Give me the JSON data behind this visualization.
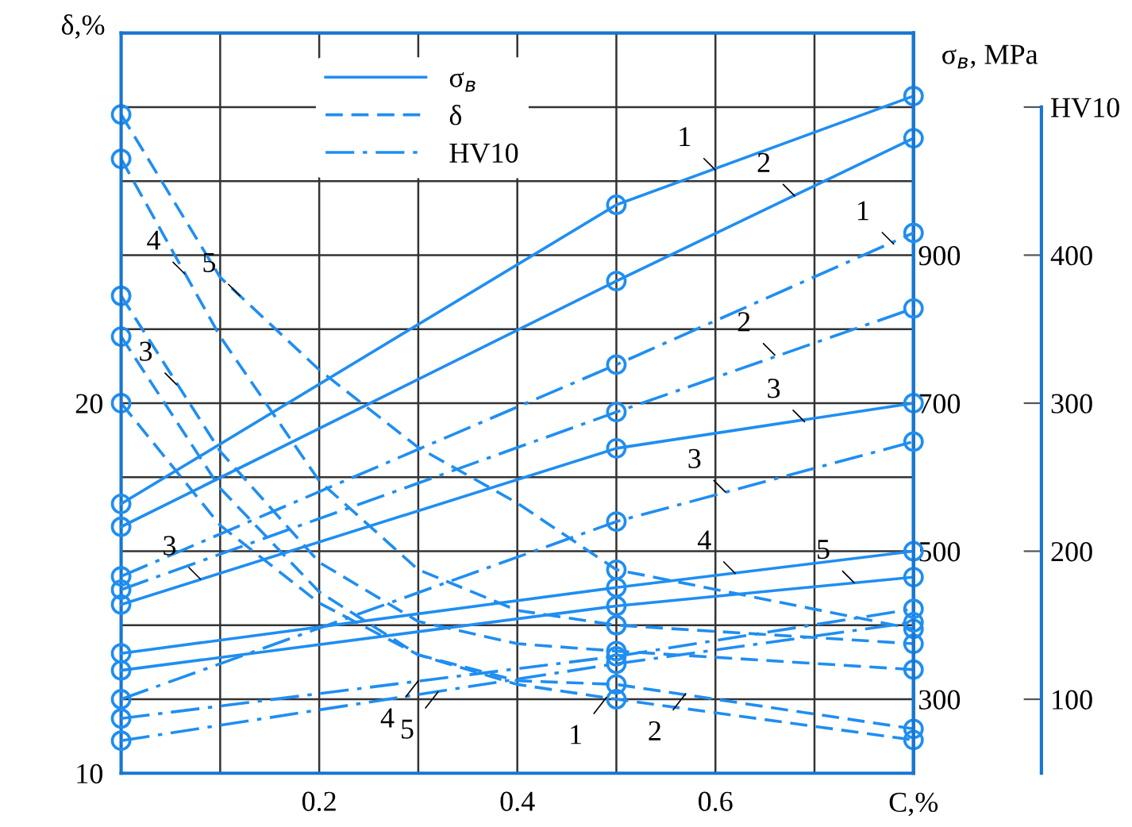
{
  "chart_data": {
    "type": "line",
    "xlabel": "C,%",
    "ylabel": "δ,%",
    "y2label": "σ$_{в}$, MPa",
    "xlim": [
      0,
      0.8
    ],
    "ylim": [
      10,
      30
    ],
    "y2lim": [
      200,
      1200
    ],
    "y3lim": [
      50,
      550
    ],
    "xticks": [
      {
        "value": 0.1,
        "label": null
      },
      0.2,
      {
        "value": 0.3,
        "label": null
      },
      0.4,
      {
        "value": 0.5,
        "label": null
      },
      0.6,
      {
        "value": 0.7,
        "label": null
      }
    ],
    "yticks": [
      10,
      {
        "value": 12,
        "label": null
      },
      {
        "value": 14,
        "label": null
      },
      {
        "value": 16,
        "label": null
      },
      {
        "value": 18,
        "label": null
      },
      20,
      {
        "value": 22,
        "label": null
      },
      {
        "value": 24,
        "label": null
      },
      {
        "value": 26,
        "label": null
      },
      {
        "value": 28,
        "label": null
      },
      {
        "value": 30,
        "label": null
      }
    ],
    "y2ticks": [
      300,
      500,
      700,
      900
    ],
    "y3ticks": [
      100,
      200,
      300,
      400,
      {
        "value": 500,
        "label": "HV10"
      }
    ],
    "grid": true,
    "legend": "top",
    "marker": "circle",
    "series": [
      {
        "name": "σ$_{в}$",
        "axis": "y2",
        "line_style": "solid",
        "color": "#1f8ef1",
        "x": [
          0,
          0.5,
          0.8
        ],
        "values": [
          564,
          968,
          1115
        ]
      },
      {
        "axis": "y2",
        "line_style": "solid",
        "color": "#1f8ef1",
        "x": [
          0,
          0.5,
          0.8
        ],
        "values": [
          533,
          865,
          1058
        ]
      },
      {
        "axis": "y2",
        "line_style": "solid",
        "color": "#1f8ef1",
        "x": [
          0,
          0.5,
          0.8
        ],
        "values": [
          428,
          639,
          700
        ]
      },
      {
        "axis": "y2",
        "line_style": "solid",
        "color": "#1f8ef1",
        "x": [
          0,
          0.5,
          0.8
        ],
        "values": [
          362,
          451,
          500
        ]
      },
      {
        "axis": "y2",
        "line_style": "solid",
        "color": "#1f8ef1",
        "x": [
          0,
          0.5,
          0.8
        ],
        "values": [
          339,
          426,
          465
        ]
      },
      {
        "name": "δ",
        "line_style": "dashed",
        "marker": "none",
        "color": "#1f8ef1",
        "x": [
          0,
          0.1,
          0.2,
          0.3,
          0.4,
          0.5,
          0.8
        ],
        "values": [
          20.0,
          16.7,
          14.6,
          13.2,
          12.4,
          12.0,
          10.9
        ]
      },
      {
        "line_style": "dashed",
        "marker": "none",
        "color": "#1f8ef1",
        "x": [
          0,
          0.1,
          0.2,
          0.3,
          0.4,
          0.5,
          0.8
        ],
        "values": [
          21.8,
          17.7,
          14.9,
          13.2,
          12.5,
          12.4,
          11.2
        ]
      },
      {
        "line_style": "dashed",
        "marker": "none",
        "color": "#1f8ef1",
        "x": [
          0,
          0.1,
          0.2,
          0.3,
          0.4,
          0.5,
          0.8
        ],
        "values": [
          22.9,
          18.7,
          15.7,
          14.1,
          13.5,
          13.3,
          12.8
        ]
      },
      {
        "line_style": "dashed",
        "marker": "none",
        "color": "#1f8ef1",
        "x": [
          0,
          0.1,
          0.2,
          0.3,
          0.4,
          0.5,
          0.8
        ],
        "values": [
          26.6,
          21.8,
          17.9,
          15.5,
          14.4,
          14.0,
          13.5
        ]
      },
      {
        "line_style": "dashed",
        "marker": "none",
        "color": "#1f8ef1",
        "x": [
          0,
          0.1,
          0.2,
          0.3,
          0.4,
          0.5,
          0.8
        ],
        "values": [
          27.8,
          23.4,
          20.9,
          18.8,
          17.3,
          15.5,
          13.9
        ]
      },
      {
        "type": "scatter",
        "color": "#1f8ef1",
        "x": [
          0,
          0.5,
          0.8
        ],
        "values": [
          20.0,
          12.0,
          10.9
        ]
      },
      {
        "type": "scatter",
        "color": "#1f8ef1",
        "x": [
          0,
          0.5,
          0.8
        ],
        "values": [
          21.8,
          12.4,
          11.2
        ]
      },
      {
        "type": "scatter",
        "color": "#1f8ef1",
        "x": [
          0,
          0.5,
          0.8
        ],
        "values": [
          22.9,
          13.3,
          12.8
        ]
      },
      {
        "type": "scatter",
        "color": "#1f8ef1",
        "x": [
          0,
          0.5,
          0.8
        ],
        "values": [
          26.6,
          14.0,
          13.5
        ]
      },
      {
        "type": "scatter",
        "color": "#1f8ef1",
        "x": [
          0,
          0.5,
          0.8
        ],
        "values": [
          27.8,
          15.5,
          13.9
        ]
      },
      {
        "name": "HV10",
        "axis": "y3",
        "line_style": "dashdot",
        "color": "#1f8ef1",
        "x": [
          0,
          0.5,
          0.8
        ],
        "values": [
          183,
          326,
          415
        ]
      },
      {
        "axis": "y3",
        "line_style": "dashdot",
        "color": "#1f8ef1",
        "x": [
          0,
          0.5,
          0.8
        ],
        "values": [
          174,
          294,
          364
        ]
      },
      {
        "axis": "y3",
        "line_style": "dashdot",
        "color": "#1f8ef1",
        "x": [
          0,
          0.5,
          0.8
        ],
        "values": [
          100,
          220,
          274
        ]
      },
      {
        "axis": "y3",
        "line_style": "dashdot",
        "color": "#1f8ef1",
        "x": [
          0,
          0.5,
          0.8
        ],
        "values": [
          87,
          129,
          161
        ]
      },
      {
        "axis": "y3",
        "line_style": "dashdot",
        "color": "#1f8ef1",
        "x": [
          0,
          0.5,
          0.8
        ],
        "values": [
          72,
          124,
          152
        ]
      }
    ],
    "annotations": [
      {
        "text": "1",
        "x": 0.6,
        "y": 26.3
      },
      {
        "text": "2",
        "x": 0.68,
        "y": 25.6
      },
      {
        "text": "1",
        "x": 0.78,
        "y": 24.3
      },
      {
        "text": "2",
        "x": 0.66,
        "y": 21.3
      },
      {
        "text": "3",
        "x": 0.69,
        "y": 19.5
      },
      {
        "text": "3",
        "x": 0.61,
        "y": 17.6
      },
      {
        "text": "4",
        "x": 0.62,
        "y": 15.4
      },
      {
        "text": "5",
        "x": 0.74,
        "y": 15.15
      },
      {
        "text": "5",
        "x": 0.12,
        "y": 22.9
      },
      {
        "text": "4",
        "x": 0.064,
        "y": 23.5
      },
      {
        "text": "3",
        "x": 0.056,
        "y": 20.5
      },
      {
        "text": "3",
        "x": 0.08,
        "y": 15.25
      },
      {
        "text": "4",
        "x": 0.3,
        "y": 12.5
      },
      {
        "text": "5",
        "x": 0.32,
        "y": 12.2
      },
      {
        "text": "1",
        "x": 0.49,
        "y": 12.05
      },
      {
        "text": "2",
        "x": 0.57,
        "y": 12.15
      }
    ]
  }
}
